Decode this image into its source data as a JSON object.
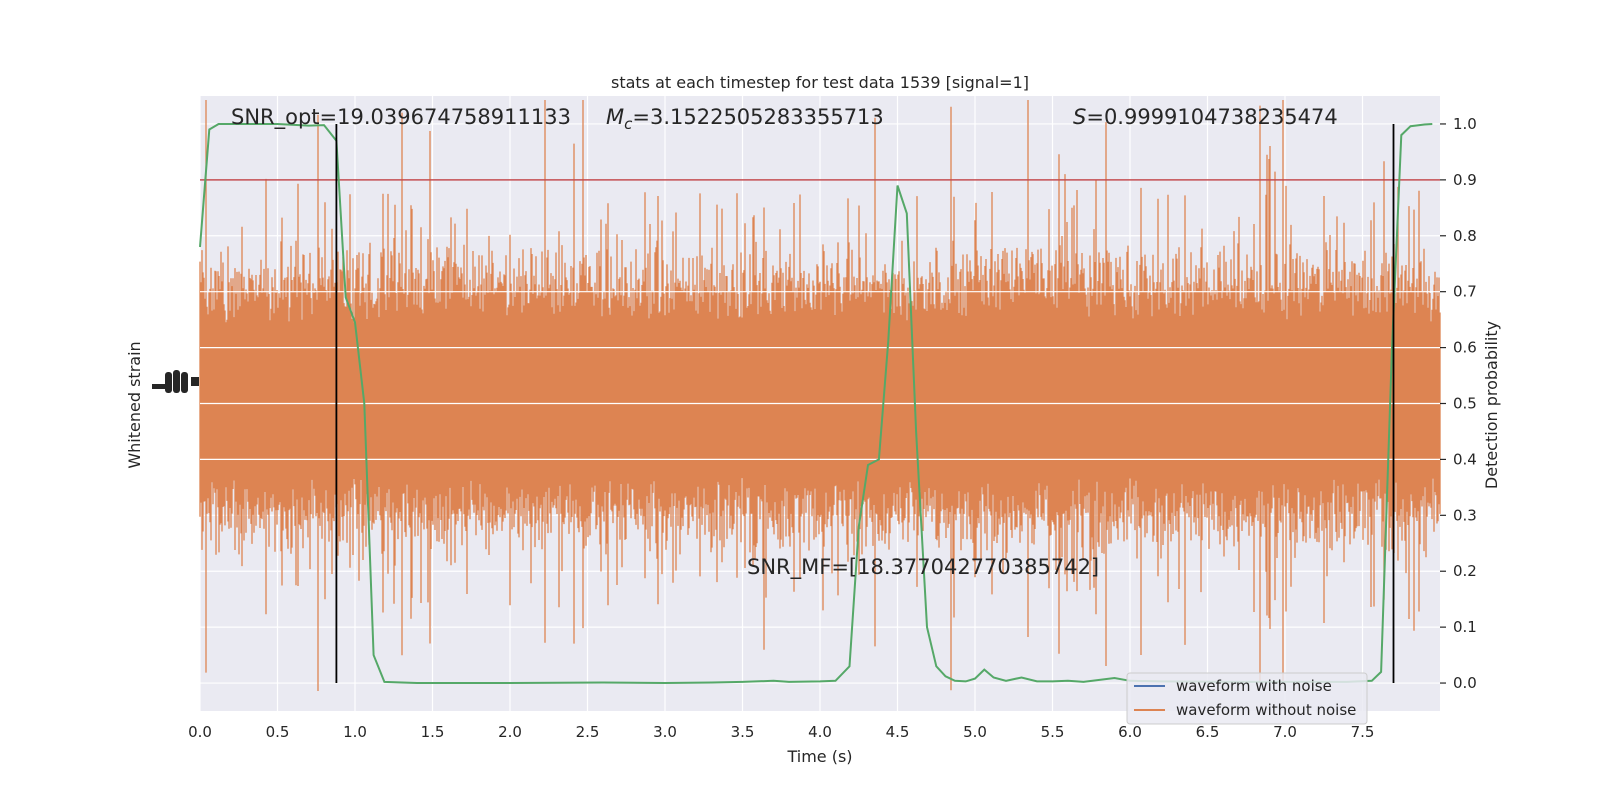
{
  "chart_data": {
    "type": "line",
    "title": "stats at each timestep for test data 1539 [signal=1]",
    "xlabel": "Time (s)",
    "ylabel_left": "Whitened strain",
    "ylabel_right": "Detection probability",
    "xlim": [
      0,
      8
    ],
    "ylim_right": [
      -0.05,
      1.05
    ],
    "x_ticks": [
      0.0,
      0.5,
      1.0,
      1.5,
      2.0,
      2.5,
      3.0,
      3.5,
      4.0,
      4.5,
      5.0,
      5.5,
      6.0,
      6.5,
      7.0,
      7.5
    ],
    "x_tick_labels": [
      "0.0",
      "0.5",
      "1.0",
      "1.5",
      "2.0",
      "2.5",
      "3.0",
      "3.5",
      "4.0",
      "4.5",
      "5.0",
      "5.5",
      "6.0",
      "6.5",
      "7.0",
      "7.5"
    ],
    "y_right_ticks": [
      0.0,
      0.1,
      0.2,
      0.3,
      0.4,
      0.5,
      0.6,
      0.7,
      0.8,
      0.9,
      1.0
    ],
    "y_right_tick_labels": [
      "0.0",
      "0.1",
      "0.2",
      "0.3",
      "0.4",
      "0.5",
      "0.6",
      "0.7",
      "0.8",
      "0.9",
      "1.0"
    ],
    "grid": true,
    "legend_position": "bottom-right",
    "annotations": {
      "snr_opt": "SNR_opt=19.039674758911133",
      "mc_symbol": "M",
      "mc_sub": "c",
      "mc_value": "=3.1522505283355713",
      "s_symbol": "S",
      "s_value": "=0.9999104738235474",
      "snr_mf": "SNR_MF=[18.377042770385742]"
    },
    "threshold": 0.9,
    "vertical_lines": [
      0.88,
      7.7
    ],
    "series": [
      {
        "name": "waveform with noise",
        "color": "#4c72b0"
      },
      {
        "name": "waveform without noise",
        "color": "#dd8452"
      }
    ],
    "probability_curve": {
      "color": "#55a868",
      "points": [
        [
          0.0,
          0.78
        ],
        [
          0.06,
          0.99
        ],
        [
          0.12,
          1.0
        ],
        [
          0.3,
          1.0
        ],
        [
          0.5,
          1.0
        ],
        [
          0.7,
          0.997
        ],
        [
          0.8,
          0.998
        ],
        [
          0.88,
          0.97
        ],
        [
          0.94,
          0.69
        ],
        [
          1.0,
          0.645
        ],
        [
          1.06,
          0.5
        ],
        [
          1.12,
          0.05
        ],
        [
          1.19,
          0.002
        ],
        [
          1.4,
          0.0
        ],
        [
          2.0,
          0.0
        ],
        [
          2.6,
          0.001
        ],
        [
          3.0,
          0.0
        ],
        [
          3.3,
          0.001
        ],
        [
          3.5,
          0.002
        ],
        [
          3.7,
          0.004
        ],
        [
          3.8,
          0.002
        ],
        [
          4.0,
          0.003
        ],
        [
          4.1,
          0.004
        ],
        [
          4.19,
          0.03
        ],
        [
          4.25,
          0.28
        ],
        [
          4.31,
          0.39
        ],
        [
          4.38,
          0.4
        ],
        [
          4.44,
          0.61
        ],
        [
          4.5,
          0.89
        ],
        [
          4.56,
          0.84
        ],
        [
          4.62,
          0.45
        ],
        [
          4.69,
          0.1
        ],
        [
          4.75,
          0.03
        ],
        [
          4.81,
          0.012
        ],
        [
          4.87,
          0.004
        ],
        [
          4.94,
          0.003
        ],
        [
          5.0,
          0.008
        ],
        [
          5.06,
          0.024
        ],
        [
          5.12,
          0.01
        ],
        [
          5.2,
          0.004
        ],
        [
          5.3,
          0.01
        ],
        [
          5.4,
          0.003
        ],
        [
          5.5,
          0.003
        ],
        [
          5.6,
          0.004
        ],
        [
          5.7,
          0.002
        ],
        [
          5.9,
          0.009
        ],
        [
          6.0,
          0.004
        ],
        [
          6.2,
          0.003
        ],
        [
          6.6,
          0.002
        ],
        [
          7.0,
          0.002
        ],
        [
          7.4,
          0.002
        ],
        [
          7.56,
          0.004
        ],
        [
          7.62,
          0.02
        ],
        [
          7.69,
          0.6
        ],
        [
          7.75,
          0.98
        ],
        [
          7.81,
          0.996
        ],
        [
          7.9,
          0.999
        ],
        [
          7.95,
          1.0
        ]
      ]
    }
  }
}
